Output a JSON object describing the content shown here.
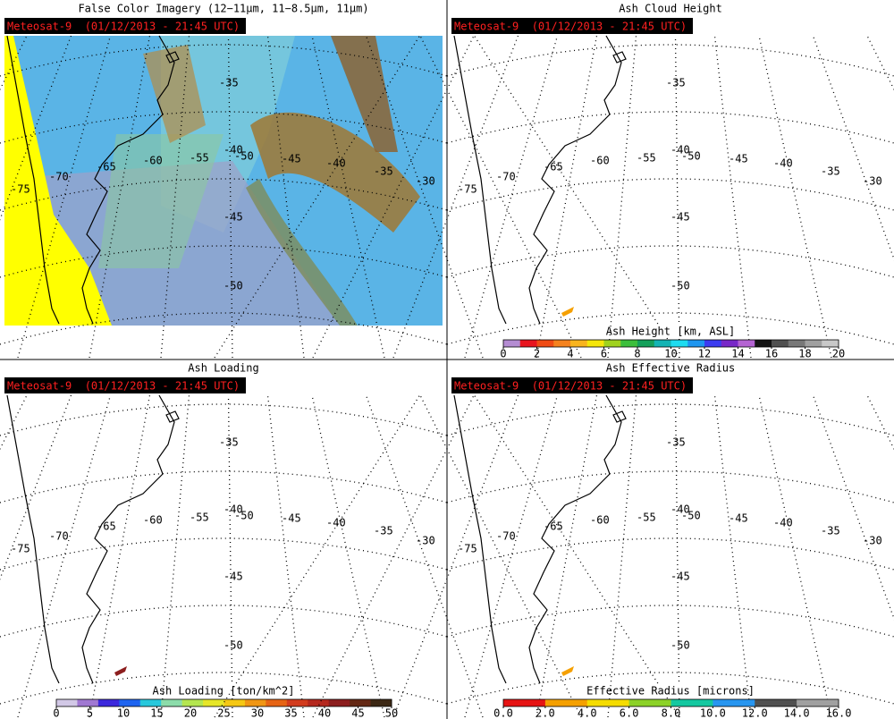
{
  "panels": [
    {
      "title": "False Color Imagery (12−11μm, 11−8.5μm, 11μm)",
      "satellite_label": "Meteosat-9  (01/12/2013 - 21:45 UTC)",
      "lat_labels": [
        -35,
        -40,
        -45,
        -50
      ],
      "lon_labels": [
        -75,
        -70,
        -65,
        -60,
        -55,
        -50,
        -45,
        -40,
        -35,
        -30
      ]
    },
    {
      "title": "Ash Cloud Height",
      "satellite_label": "Meteosat-9  (01/12/2013 - 21:45 UTC)",
      "lat_labels": [
        -35,
        -40,
        -45,
        -50
      ],
      "lon_labels": [
        -75,
        -70,
        -65,
        -60,
        -55,
        -50,
        -45,
        -40,
        -35,
        -30
      ],
      "colorbar": {
        "label": "Ash Height [km, ASL]",
        "ticks": [
          0,
          2,
          4,
          6,
          8,
          10,
          12,
          14,
          16,
          18,
          20
        ],
        "colors": [
          "#b48cd2",
          "#e8141e",
          "#f04b14",
          "#f5821e",
          "#f8b41e",
          "#f5e60a",
          "#a0d21e",
          "#3cbe3c",
          "#14a05a",
          "#14b4b4",
          "#1edcf0",
          "#1e96f0",
          "#3c3cf0",
          "#7828c8",
          "#b464d2",
          "#141414",
          "#505050",
          "#787878",
          "#a0a0a0",
          "#c8c8c8"
        ]
      }
    },
    {
      "title": "Ash Loading",
      "satellite_label": "Meteosat-9  (01/12/2013 - 21:45 UTC)",
      "lat_labels": [
        -35,
        -40,
        -45,
        -50
      ],
      "lon_labels": [
        -75,
        -70,
        -65,
        -60,
        -55,
        -50,
        -45,
        -40,
        -35,
        -30
      ],
      "colorbar": {
        "label": "Ash Loading [ton/km^2]",
        "ticks": [
          0,
          5,
          10,
          15,
          20,
          25,
          30,
          35,
          40,
          45,
          50
        ],
        "colors": [
          "#d2c8e6",
          "#a078d2",
          "#3c28dc",
          "#1e64f0",
          "#28c8dc",
          "#8cdcaa",
          "#b4e650",
          "#e6e628",
          "#f5c814",
          "#f09614",
          "#e66414",
          "#d23c1e",
          "#b4281e",
          "#8c1e1e",
          "#642814",
          "#3c2814"
        ]
      }
    },
    {
      "title": "Ash Effective Radius",
      "satellite_label": "Meteosat-9  (01/12/2013 - 21:45 UTC)",
      "lat_labels": [
        -35,
        -40,
        -45,
        -50
      ],
      "lon_labels": [
        -75,
        -70,
        -65,
        -60,
        -55,
        -50,
        -45,
        -40,
        -35,
        -30
      ],
      "colorbar": {
        "label": "Effective Radius [microns]",
        "ticks": [
          {
            "value": 0,
            "label": "0.0"
          },
          {
            "value": 2,
            "label": "2.0"
          },
          {
            "value": 4,
            "label": "4.0"
          },
          {
            "value": 6,
            "label": "6.0"
          },
          {
            "value": 8,
            "label": "8.0"
          },
          {
            "value": 10,
            "label": "10.0"
          },
          {
            "value": 12,
            "label": "12.0"
          },
          {
            "value": 14,
            "label": "14.0"
          },
          {
            "value": 16,
            "label": "16.0"
          }
        ],
        "colors": [
          "#e61414",
          "#e61414",
          "#f5a000",
          "#f5a000",
          "#f5dc00",
          "#f5dc00",
          "#8cd228",
          "#8cd228",
          "#14c8a0",
          "#14c8a0",
          "#2896f0",
          "#2896f0",
          "#505050",
          "#505050",
          "#a0a0a0",
          "#a0a0a0"
        ]
      }
    }
  ]
}
